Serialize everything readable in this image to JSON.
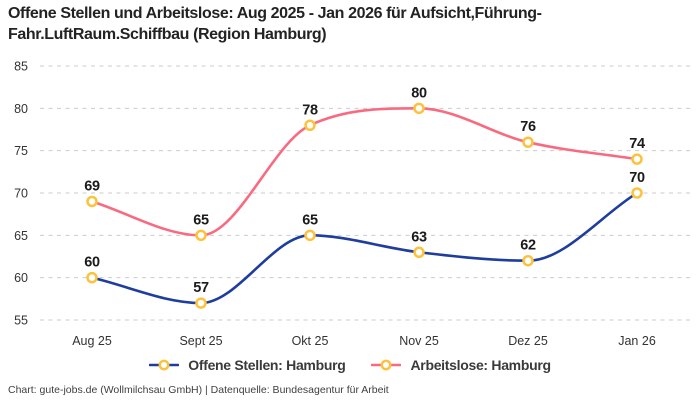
{
  "title": "Offene Stellen und Arbeitslose: Aug 2025 - Jan 2026 für Aufsicht,Führung-Fahr.LuftRaum.Schiffbau (Region Hamburg)",
  "footer": "Chart: gute-jobs.de (Wollmilchsau GmbH) | Datenquelle: Bundesagentur für Arbeit",
  "colors": {
    "background": "#ffffff",
    "grid": "#cbcbcb",
    "title_text": "#232323",
    "axis_text": "#333333",
    "point_label_text": "#1b1b1b",
    "legend_text": "#3a3a3a",
    "marker_ring": "#fdc23c",
    "marker_fill": "#ffffff",
    "series_offene_stellen": "#1e3d9e",
    "series_arbeitslose": "#f96a80"
  },
  "chart_data": {
    "type": "line",
    "title": "Offene Stellen und Arbeitslose: Aug 2025 - Jan 2026 für Aufsicht,Führung-Fahr.LuftRaum.Schiffbau (Region Hamburg)",
    "categories": [
      "Aug 25",
      "Sept 25",
      "Okt 25",
      "Nov 25",
      "Dez 25",
      "Jan 26"
    ],
    "series": [
      {
        "name": "Offene Stellen: Hamburg",
        "color": "#1e3d9e",
        "values": [
          60,
          57,
          65,
          63,
          62,
          70
        ]
      },
      {
        "name": "Arbeitslose: Hamburg",
        "color": "#f96a80",
        "values": [
          69,
          65,
          78,
          80,
          76,
          74
        ]
      }
    ],
    "xlabel": "",
    "ylabel": "",
    "ylim": [
      55,
      85
    ],
    "yticks": [
      55,
      60,
      65,
      70,
      75,
      80,
      85
    ],
    "grid": {
      "horizontal": true,
      "style": "dashed",
      "color": "#cbcbcb"
    },
    "curve": "smooth-monotone",
    "point_labels": true,
    "marker": {
      "shape": "ring",
      "stroke": "#fdc23c",
      "fill": "#ffffff"
    },
    "legend_position": "bottom-center"
  }
}
